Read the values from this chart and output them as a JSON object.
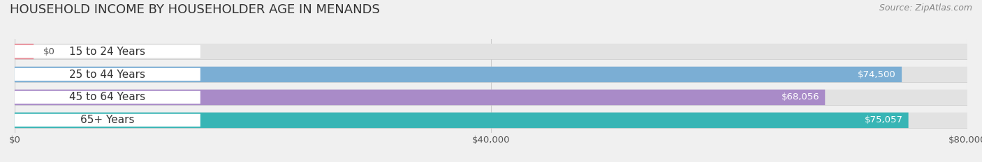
{
  "title": "HOUSEHOLD INCOME BY HOUSEHOLDER AGE IN MENANDS",
  "source": "Source: ZipAtlas.com",
  "categories": [
    "15 to 24 Years",
    "25 to 44 Years",
    "45 to 64 Years",
    "65+ Years"
  ],
  "values": [
    0,
    74500,
    68056,
    75057
  ],
  "bar_colors": [
    "#e8919c",
    "#7baed4",
    "#a98bc8",
    "#38b5b5"
  ],
  "value_labels": [
    "$0",
    "$74,500",
    "$68,056",
    "$75,057"
  ],
  "xlim": [
    0,
    80000
  ],
  "xticks": [
    0,
    40000,
    80000
  ],
  "xticklabels": [
    "$0",
    "$40,000",
    "$80,000"
  ],
  "bg_color": "#f0f0f0",
  "bar_bg_color": "#e2e2e2",
  "title_fontsize": 13,
  "source_fontsize": 9,
  "label_fontsize": 11,
  "value_fontsize": 9.5
}
